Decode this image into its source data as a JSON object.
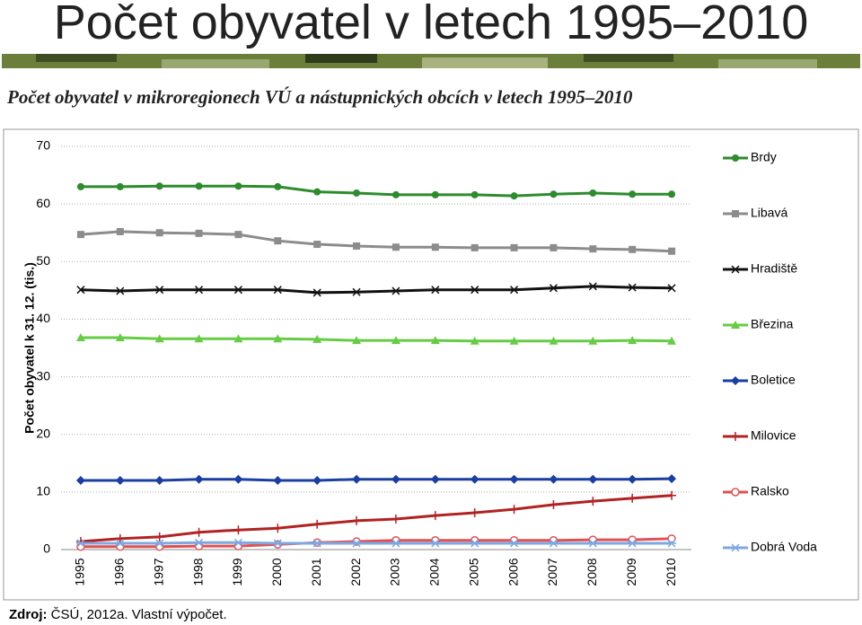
{
  "header": {
    "title": "Počet obyvatel v letech 1995–2010",
    "subtitle": "Počet obyvatel v mikroregionech VÚ a nástupnických obcích v letech 1995–2010"
  },
  "chart_data": {
    "type": "line",
    "y_label": "Počet obyvatel  k 31. 12. (tis.)",
    "categories": [
      "1995",
      "1996",
      "1997",
      "1998",
      "1999",
      "2000",
      "2001",
      "2002",
      "2003",
      "2004",
      "2005",
      "2006",
      "2007",
      "2008",
      "2009",
      "2010"
    ],
    "ylim": [
      0,
      70
    ],
    "yticks": [
      0,
      10,
      20,
      30,
      40,
      50,
      60,
      70
    ],
    "grid": true,
    "legend": "right",
    "series": [
      {
        "name": "Brdy",
        "color": "#2e8b2e",
        "marker": "circle",
        "values": [
          63.0,
          63.0,
          63.1,
          63.1,
          63.1,
          63.0,
          62.1,
          61.9,
          61.6,
          61.6,
          61.6,
          61.4,
          61.7,
          61.9,
          61.7,
          61.7
        ]
      },
      {
        "name": "Libavá",
        "color": "#8c8c8c",
        "marker": "square",
        "values": [
          54.7,
          55.2,
          55.0,
          54.9,
          54.7,
          53.6,
          53.0,
          52.7,
          52.5,
          52.5,
          52.4,
          52.4,
          52.4,
          52.2,
          52.1,
          51.8
        ]
      },
      {
        "name": "Hradiště",
        "color": "#111111",
        "marker": "x",
        "values": [
          45.1,
          44.9,
          45.1,
          45.1,
          45.1,
          45.1,
          44.6,
          44.7,
          44.9,
          45.1,
          45.1,
          45.1,
          45.4,
          45.7,
          45.5,
          45.4
        ]
      },
      {
        "name": "Březina",
        "color": "#66cc44",
        "marker": "triangle",
        "values": [
          36.8,
          36.8,
          36.6,
          36.6,
          36.6,
          36.6,
          36.5,
          36.3,
          36.3,
          36.3,
          36.2,
          36.2,
          36.2,
          36.2,
          36.3,
          36.2
        ]
      },
      {
        "name": "Boletice",
        "color": "#1a3fa0",
        "marker": "diamond",
        "values": [
          12.0,
          12.0,
          12.0,
          12.2,
          12.2,
          12.0,
          12.0,
          12.2,
          12.2,
          12.2,
          12.2,
          12.2,
          12.2,
          12.2,
          12.2,
          12.3
        ]
      },
      {
        "name": "Milovice",
        "color": "#b22222",
        "marker": "plus",
        "values": [
          1.4,
          1.9,
          2.2,
          3.0,
          3.4,
          3.7,
          4.4,
          5.0,
          5.3,
          5.9,
          6.4,
          7.0,
          7.8,
          8.4,
          8.9,
          9.4
        ]
      },
      {
        "name": "Ralsko",
        "color": "#e05050",
        "marker": "ocircle",
        "values": [
          0.5,
          0.5,
          0.5,
          0.6,
          0.6,
          0.9,
          1.2,
          1.4,
          1.6,
          1.6,
          1.6,
          1.6,
          1.6,
          1.7,
          1.7,
          1.9
        ]
      },
      {
        "name": "Dobrá Voda",
        "color": "#7fa7e0",
        "marker": "asterisk",
        "values": [
          1.1,
          1.1,
          1.1,
          1.2,
          1.2,
          1.1,
          1.1,
          1.1,
          1.1,
          1.1,
          1.1,
          1.1,
          1.1,
          1.1,
          1.1,
          1.1
        ]
      }
    ]
  },
  "footer": {
    "source_label": "Zdroj:",
    "source": "ČSÚ, 2012a. Vlastní výpočet."
  }
}
